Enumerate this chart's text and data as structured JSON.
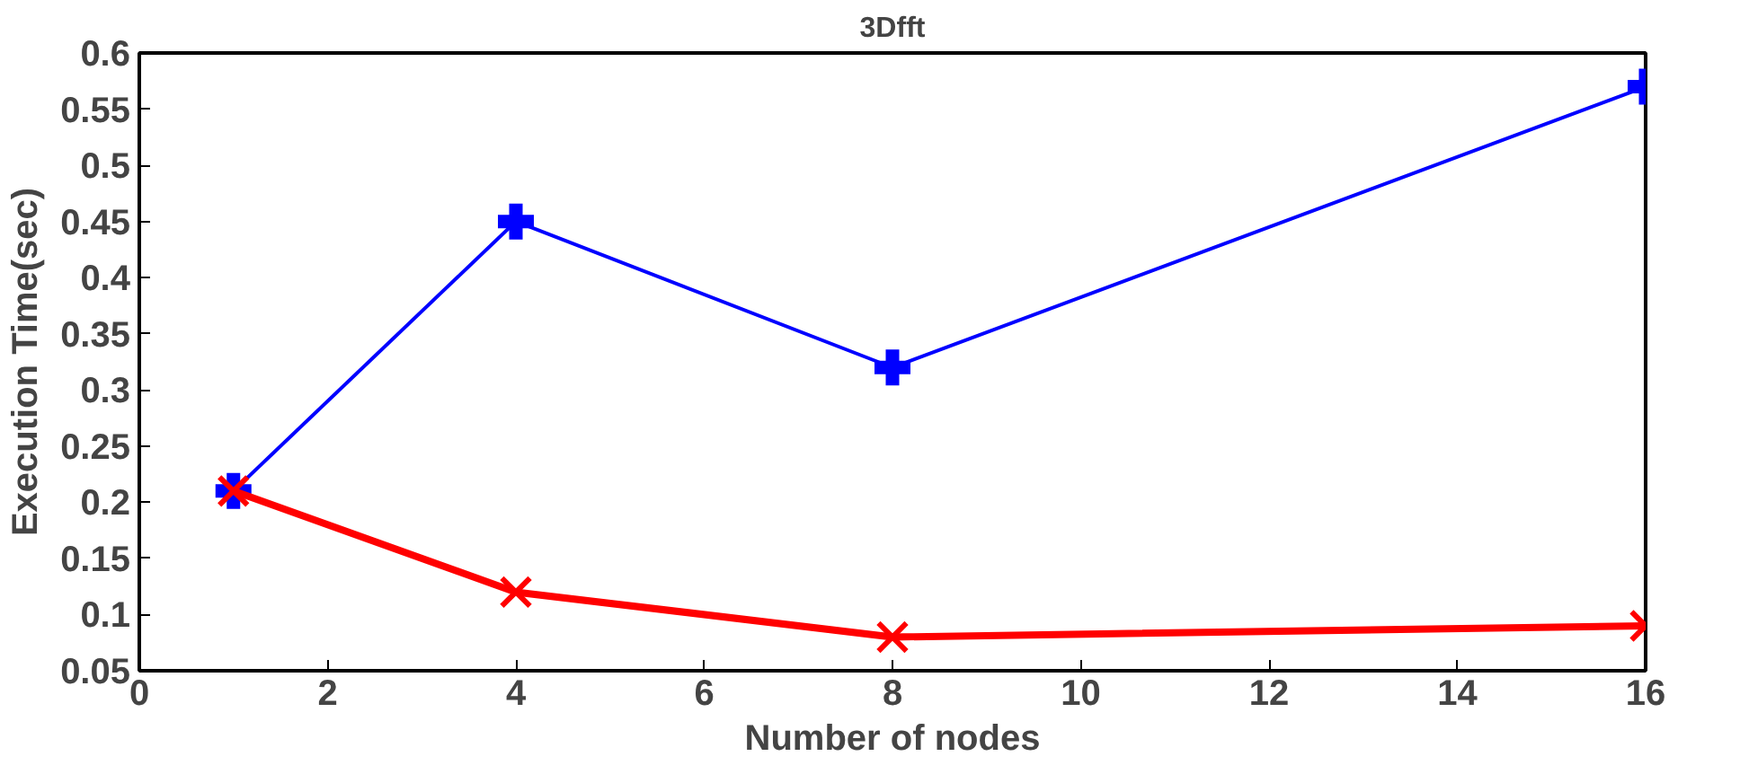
{
  "chart_data": {
    "type": "line",
    "title": "3Dfft",
    "xlabel": "Number of nodes",
    "ylabel": "Execution Time(sec)",
    "x": [
      1,
      4,
      8,
      16
    ],
    "series": [
      {
        "color": "#0000ff",
        "values": [
          0.21,
          0.45,
          0.32,
          0.57
        ],
        "marker": "cross",
        "line_style": "solid"
      },
      {
        "color": "#ff0000",
        "values": [
          0.21,
          0.12,
          0.08,
          0.09
        ],
        "marker": "x",
        "line_style": "solid"
      }
    ],
    "xlim": [
      0,
      16
    ],
    "ylim": [
      0.05,
      0.6
    ],
    "xticks": [
      0,
      2,
      4,
      6,
      8,
      10,
      12,
      14,
      16
    ],
    "yticks": [
      0.05,
      0.1,
      0.15,
      0.2,
      0.25,
      0.3,
      0.35,
      0.4,
      0.45,
      0.5,
      0.55,
      0.6
    ],
    "grid": false
  }
}
